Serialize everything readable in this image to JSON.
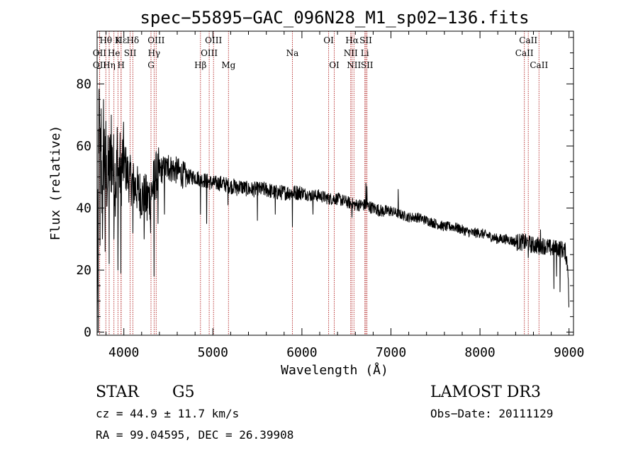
{
  "chart_data": {
    "type": "line",
    "title": "spec−55895−GAC_096N28_M1_sp02−136.fits",
    "xlabel": "Wavelength (Å)",
    "ylabel": "Flux (relative)",
    "xlim": [
      3700,
      9050
    ],
    "ylim": [
      -1,
      97
    ],
    "xticks": [
      4000,
      5000,
      6000,
      7000,
      8000,
      9000
    ],
    "yticks": [
      0,
      20,
      40,
      60,
      80
    ],
    "grid": false,
    "series": [
      {
        "name": "flux",
        "anchors": [
          [
            3700,
            4
          ],
          [
            3712,
            60
          ],
          [
            3725,
            66
          ],
          [
            3740,
            52
          ],
          [
            3760,
            44
          ],
          [
            3780,
            60
          ],
          [
            3800,
            48
          ],
          [
            3830,
            52
          ],
          [
            3860,
            56
          ],
          [
            3900,
            50
          ],
          [
            3950,
            52
          ],
          [
            4000,
            55
          ],
          [
            4050,
            50
          ],
          [
            4100,
            48
          ],
          [
            4150,
            46
          ],
          [
            4200,
            44
          ],
          [
            4250,
            43
          ],
          [
            4300,
            44
          ],
          [
            4350,
            50
          ],
          [
            4400,
            52
          ],
          [
            4500,
            53
          ],
          [
            4600,
            52
          ],
          [
            4700,
            50
          ],
          [
            4800,
            50
          ],
          [
            4900,
            49
          ],
          [
            5000,
            48
          ],
          [
            5100,
            48
          ],
          [
            5200,
            47
          ],
          [
            5300,
            47
          ],
          [
            5400,
            46
          ],
          [
            5500,
            46
          ],
          [
            5600,
            46
          ],
          [
            5700,
            45
          ],
          [
            5800,
            45
          ],
          [
            5900,
            45
          ],
          [
            6000,
            45
          ],
          [
            6100,
            44
          ],
          [
            6200,
            44
          ],
          [
            6300,
            43
          ],
          [
            6400,
            43
          ],
          [
            6500,
            42
          ],
          [
            6600,
            41
          ],
          [
            6700,
            41
          ],
          [
            6800,
            40
          ],
          [
            6900,
            39
          ],
          [
            7000,
            39
          ],
          [
            7100,
            38
          ],
          [
            7200,
            37
          ],
          [
            7300,
            37
          ],
          [
            7400,
            36
          ],
          [
            7500,
            35
          ],
          [
            7600,
            34
          ],
          [
            7700,
            34
          ],
          [
            7800,
            33
          ],
          [
            7900,
            32
          ],
          [
            8000,
            32
          ],
          [
            8100,
            31
          ],
          [
            8200,
            30
          ],
          [
            8300,
            30
          ],
          [
            8400,
            29
          ],
          [
            8500,
            29
          ],
          [
            8600,
            28
          ],
          [
            8700,
            28
          ],
          [
            8800,
            27
          ],
          [
            8900,
            27
          ],
          [
            8960,
            26
          ],
          [
            8990,
            20
          ],
          [
            9000,
            5
          ]
        ],
        "features": [
          {
            "x": 3712,
            "y": 0
          },
          {
            "x": 3722,
            "y": 78
          },
          {
            "x": 3734,
            "y": 28
          },
          {
            "x": 3745,
            "y": 72
          },
          {
            "x": 3760,
            "y": 30
          },
          {
            "x": 3772,
            "y": 75
          },
          {
            "x": 3790,
            "y": 26
          },
          {
            "x": 3800,
            "y": 68
          },
          {
            "x": 3835,
            "y": 22
          },
          {
            "x": 3860,
            "y": 70
          },
          {
            "x": 3889,
            "y": 30
          },
          {
            "x": 3925,
            "y": 66
          },
          {
            "x": 3934,
            "y": 20
          },
          {
            "x": 3968,
            "y": 19
          },
          {
            "x": 4101,
            "y": 32
          },
          {
            "x": 4227,
            "y": 30
          },
          {
            "x": 4262,
            "y": 36
          },
          {
            "x": 4275,
            "y": 45
          },
          {
            "x": 4300,
            "y": 32
          },
          {
            "x": 4340,
            "y": 18
          },
          {
            "x": 4383,
            "y": 35
          },
          {
            "x": 4455,
            "y": 38
          },
          {
            "x": 4500,
            "y": 57
          },
          {
            "x": 4530,
            "y": 52
          },
          {
            "x": 4861,
            "y": 38
          },
          {
            "x": 4930,
            "y": 35
          },
          {
            "x": 5170,
            "y": 41
          },
          {
            "x": 5270,
            "y": 44
          },
          {
            "x": 5500,
            "y": 36
          },
          {
            "x": 5700,
            "y": 38
          },
          {
            "x": 5892,
            "y": 34
          },
          {
            "x": 6125,
            "y": 38
          },
          {
            "x": 6562,
            "y": 37
          },
          {
            "x": 6717,
            "y": 48
          },
          {
            "x": 6730,
            "y": 47
          },
          {
            "x": 7080,
            "y": 46
          },
          {
            "x": 8497,
            "y": 27
          },
          {
            "x": 8542,
            "y": 24
          },
          {
            "x": 8662,
            "y": 25
          },
          {
            "x": 8680,
            "y": 33
          },
          {
            "x": 8830,
            "y": 14
          },
          {
            "x": 8860,
            "y": 18
          },
          {
            "x": 8900,
            "y": 13
          }
        ]
      }
    ],
    "annotations": [
      {
        "label": "Hθ",
        "x": 3798,
        "row": 1
      },
      {
        "label": "OII",
        "x": 3727,
        "row": 2
      },
      {
        "label": "OII",
        "x": 3729,
        "row": 3
      },
      {
        "label": "He",
        "x": 3889,
        "row": 2
      },
      {
        "label": "Hη",
        "x": 3835,
        "row": 3
      },
      {
        "label": "K",
        "x": 3934,
        "row": 1
      },
      {
        "label": "H",
        "x": 3968,
        "row": 3
      },
      {
        "label": "Hε",
        "x": 3970,
        "row": 1
      },
      {
        "label": "SII",
        "x": 4071,
        "row": 2
      },
      {
        "label": "Hδ",
        "x": 4101,
        "row": 1
      },
      {
        "label": "OIII",
        "x": 4363,
        "row": 1
      },
      {
        "label": "Hγ",
        "x": 4340,
        "row": 2
      },
      {
        "label": "G",
        "x": 4305,
        "row": 3
      },
      {
        "label": "Hβ",
        "x": 4861,
        "row": 3
      },
      {
        "label": "OIII",
        "x": 5007,
        "row": 1
      },
      {
        "label": "OIII",
        "x": 4959,
        "row": 2
      },
      {
        "label": "Mg",
        "x": 5175,
        "row": 3
      },
      {
        "label": "Na",
        "x": 5893,
        "row": 2
      },
      {
        "label": "OI",
        "x": 6300,
        "row": 1
      },
      {
        "label": "OI",
        "x": 6363,
        "row": 3
      },
      {
        "label": "Hα",
        "x": 6563,
        "row": 1
      },
      {
        "label": "NII",
        "x": 6548,
        "row": 2
      },
      {
        "label": "NII",
        "x": 6584,
        "row": 3
      },
      {
        "label": "SII",
        "x": 6717,
        "row": 1
      },
      {
        "label": "Li",
        "x": 6707,
        "row": 2
      },
      {
        "label": "SII",
        "x": 6731,
        "row": 3
      },
      {
        "label": "CaII",
        "x": 8542,
        "row": 1
      },
      {
        "label": "CaII",
        "x": 8498,
        "row": 2
      },
      {
        "label": "CaII",
        "x": 8662,
        "row": 3
      }
    ],
    "line_markers": [
      3727,
      3729,
      3798,
      3835,
      3889,
      3934,
      3968,
      3970,
      4071,
      4101,
      4305,
      4340,
      4363,
      4861,
      4959,
      5007,
      5175,
      5893,
      6300,
      6363,
      6548,
      6563,
      6584,
      6707,
      6717,
      6731,
      8498,
      8542,
      8662
    ]
  },
  "footer": {
    "class_label": "STAR",
    "subclass": "G5",
    "survey": "LAMOST DR3",
    "cz": "cz = 44.9 ± 11.7 km/s",
    "obs_date": "Obs−Date: 20111129",
    "coords": "RA =  99.04595, DEC =  26.39908"
  },
  "colors": {
    "line": "#000000",
    "marker": "#b22222",
    "text": "#000000"
  }
}
